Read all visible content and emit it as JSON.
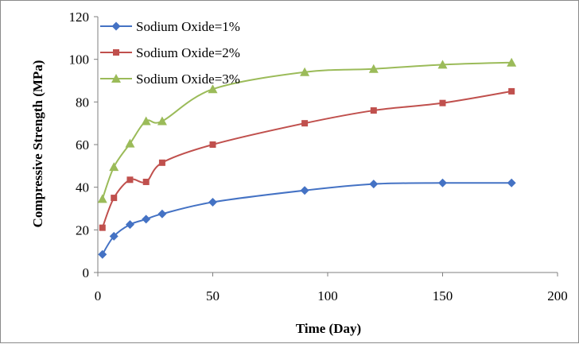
{
  "chart_data": {
    "type": "line",
    "title": "",
    "xlabel": "Time (Day)",
    "ylabel": "Compressive Strength (MPa)",
    "xlim": [
      0,
      200
    ],
    "ylim": [
      0,
      120
    ],
    "xticks": [
      "0",
      "50",
      "100",
      "150",
      "200"
    ],
    "yticks": [
      "0",
      "20",
      "40",
      "60",
      "80",
      "100",
      "120"
    ],
    "grid": false,
    "legend_position": "top-left",
    "series": [
      {
        "name": "Sodium Oxide=1%",
        "color": "#4472c4",
        "marker": "diamond",
        "x": [
          2,
          7,
          14,
          21,
          28,
          50,
          90,
          120,
          150,
          180
        ],
        "y": [
          8.5,
          17,
          22.5,
          25,
          27.5,
          33,
          38.5,
          41.5,
          42,
          42
        ]
      },
      {
        "name": "Sodium Oxide=2%",
        "color": "#c0504d",
        "marker": "square",
        "x": [
          2,
          7,
          14,
          21,
          28,
          50,
          90,
          120,
          150,
          180
        ],
        "y": [
          21,
          35,
          43.5,
          42.5,
          51.5,
          60,
          70,
          76,
          79.5,
          85
        ]
      },
      {
        "name": "Sodium Oxide=3%",
        "color": "#9bbb59",
        "marker": "triangle",
        "x": [
          2,
          7,
          14,
          21,
          28,
          50,
          90,
          120,
          150,
          180
        ],
        "y": [
          34.5,
          49.5,
          60.5,
          71,
          71,
          86,
          94,
          95.5,
          97.5,
          98.5
        ]
      }
    ]
  }
}
